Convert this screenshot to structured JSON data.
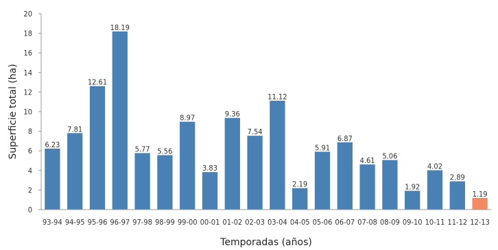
{
  "chart_data": {
    "type": "bar",
    "categories": [
      "93-94",
      "94-95",
      "95-96",
      "96-97",
      "97-98",
      "98-99",
      "99-00",
      "00-01",
      "01-02",
      "02-03",
      "03-04",
      "04-05",
      "05-06",
      "06-07",
      "07-08",
      "08-09",
      "09-10",
      "10-11",
      "11-12",
      "12-13"
    ],
    "values": [
      6.23,
      7.81,
      12.61,
      18.19,
      5.77,
      5.56,
      8.97,
      3.83,
      9.36,
      7.54,
      11.12,
      2.19,
      5.91,
      6.87,
      4.61,
      5.06,
      1.92,
      4.02,
      2.89,
      1.19
    ],
    "value_labels": [
      "6.23",
      "7.81",
      "12.61",
      "18.19",
      "5.77",
      "5.56",
      "8.97",
      "3.83",
      "9.36",
      "7.54",
      "11.12",
      "2.19",
      "5.91",
      "6.87",
      "4.61",
      "5.06",
      "1.92",
      "4.02",
      "2.89",
      "1.19"
    ],
    "xlabel": "Temporadas (años)",
    "ylabel": "Superficie total (ha)",
    "ylim": [
      0,
      20
    ],
    "yticks": [
      0,
      2,
      4,
      6,
      8,
      10,
      12,
      14,
      16,
      18,
      20
    ],
    "grid": false,
    "colors": {
      "default": "#4a81b5",
      "highlight": "#f28a63"
    },
    "highlight_index": 19
  }
}
